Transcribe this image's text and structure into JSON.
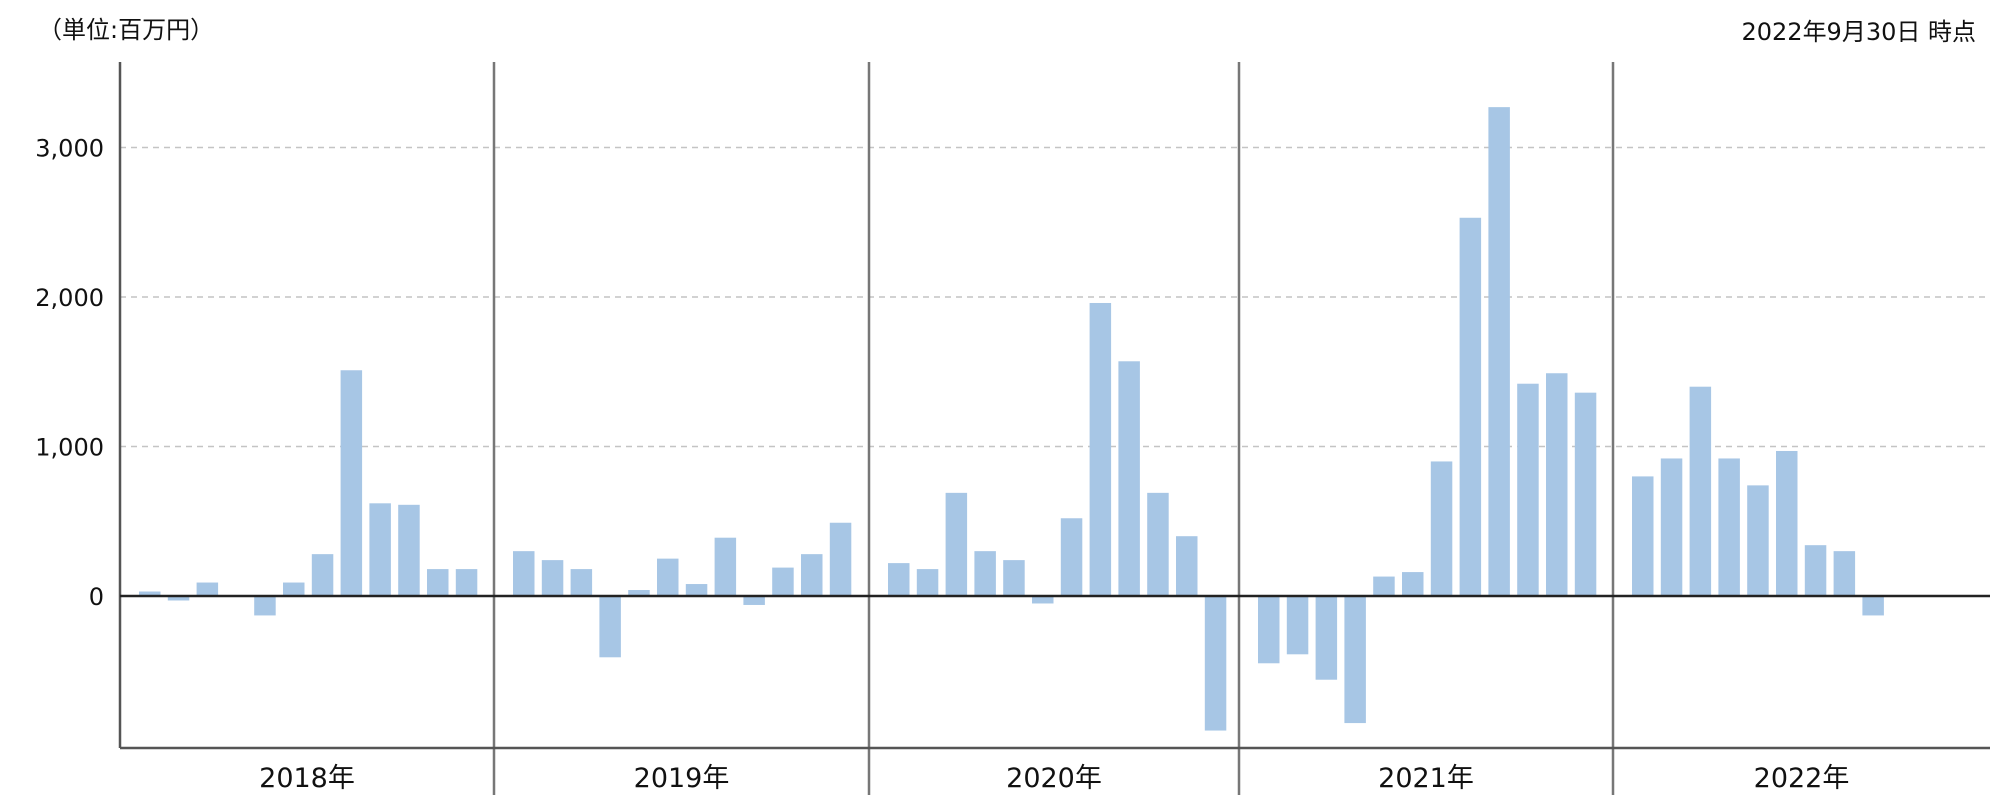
{
  "header": {
    "unit_label": "（単位:百万円）",
    "as_of_label": "2022年9月30日 時点"
  },
  "chart_data": {
    "type": "bar",
    "title": "",
    "xlabel": "",
    "ylabel": "",
    "ylim": [
      -1020,
      3550
    ],
    "yticks": [
      0,
      1000,
      2000,
      3000
    ],
    "ytick_labels": [
      "0",
      "1,000",
      "2,000",
      "3,000"
    ],
    "grid": true,
    "bar_color": "#a7c6e5",
    "groups": [
      {
        "label": "2018年",
        "values": [
          30,
          -30,
          90,
          0,
          -130,
          90,
          280,
          1510,
          620,
          610,
          180,
          180
        ]
      },
      {
        "label": "2019年",
        "values": [
          300,
          240,
          180,
          -410,
          40,
          250,
          80,
          390,
          -60,
          190,
          280,
          490
        ]
      },
      {
        "label": "2020年",
        "values": [
          220,
          180,
          690,
          300,
          240,
          -50,
          520,
          1960,
          1570,
          690,
          400,
          -900
        ]
      },
      {
        "label": "2021年",
        "values": [
          -450,
          -390,
          -560,
          -850,
          130,
          160,
          900,
          2530,
          3270,
          1420,
          1490,
          1360
        ]
      },
      {
        "label": "2022年",
        "values": [
          800,
          920,
          1400,
          920,
          740,
          970,
          340,
          300,
          -130
        ]
      }
    ]
  }
}
